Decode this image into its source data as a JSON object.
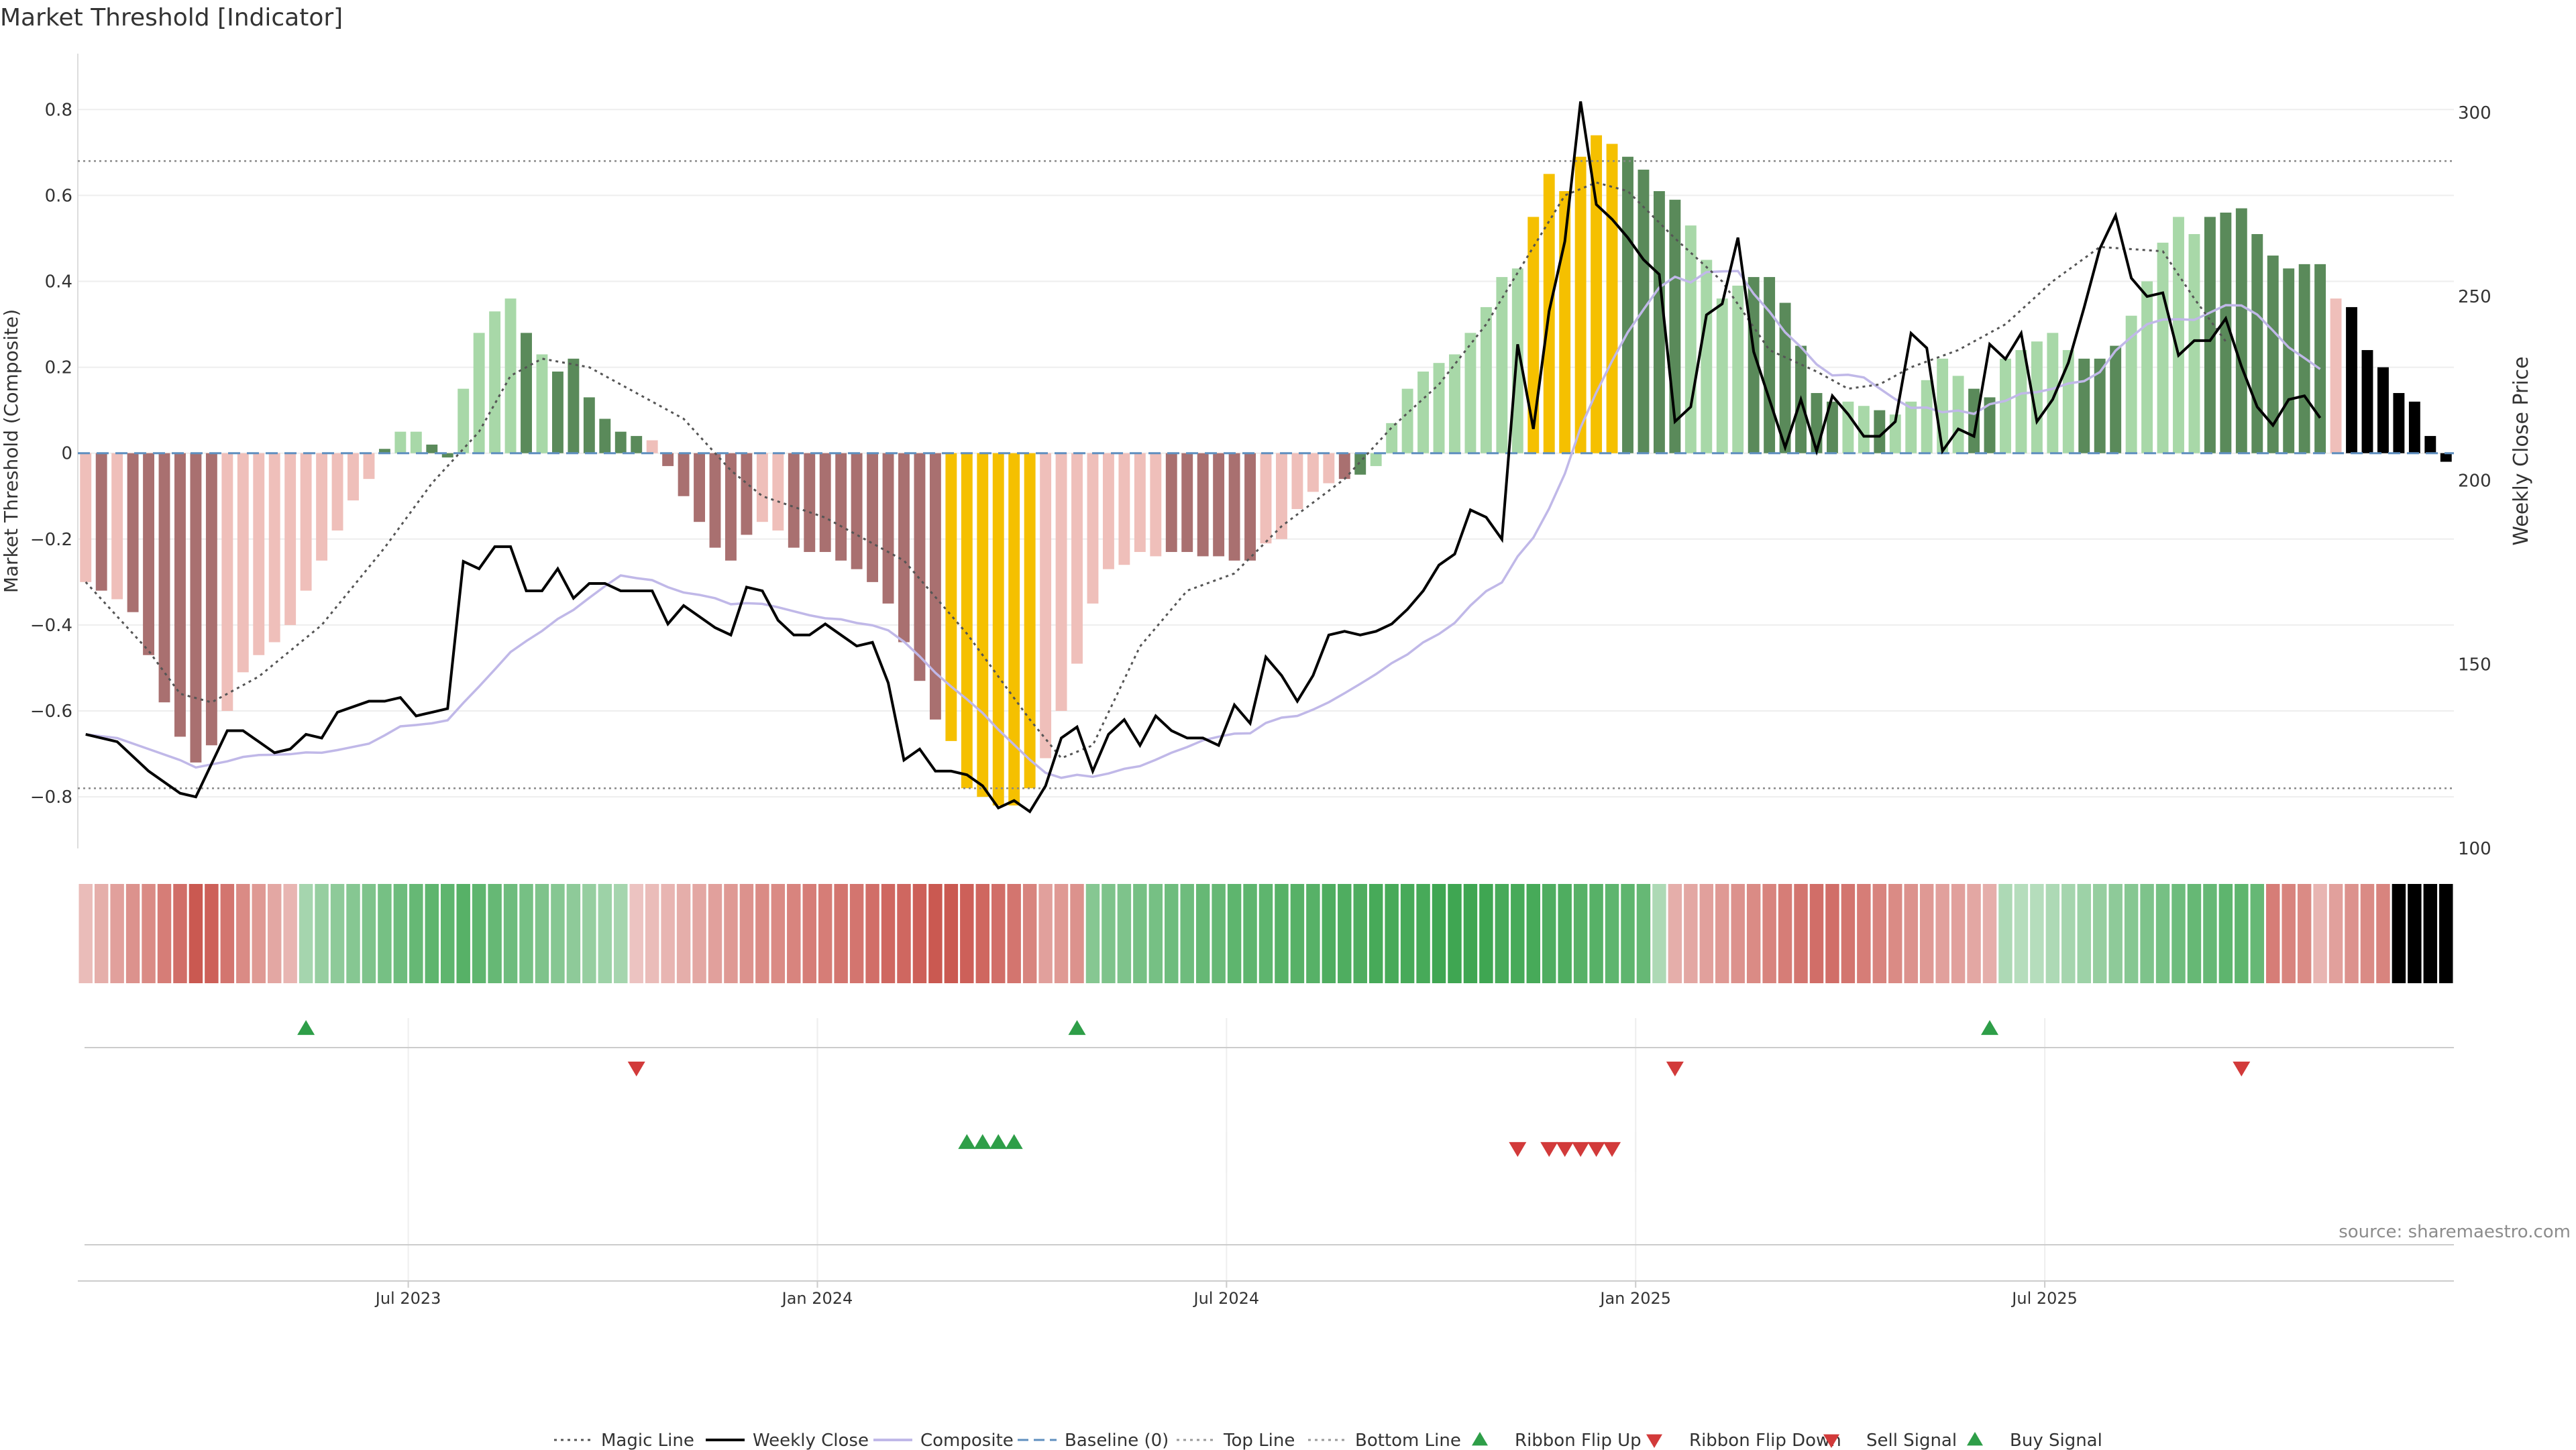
{
  "title": "Market Threshold [Indicator]",
  "source": "source: sharemaestro.com",
  "chart_data": {
    "type": "bar",
    "y_left": {
      "label": "Market Threshold (Composite)",
      "ticks": [
        0.8,
        0.6,
        0.4,
        0.2,
        0,
        -0.2,
        -0.4,
        -0.6,
        -0.8
      ],
      "tick_labels": [
        "0.8",
        "0.6",
        "0.4",
        "0.2",
        "0",
        "−0.2",
        "−0.4",
        "−0.6",
        "−0.8"
      ],
      "range": [
        -0.92,
        0.93
      ]
    },
    "y_right": {
      "label": "Weekly Close Price",
      "ticks": [
        300,
        250,
        200,
        150,
        100
      ],
      "range": [
        100,
        316
      ]
    },
    "x_ticks": [
      {
        "label": "Jul 2023",
        "week": 49.5
      },
      {
        "label": "Jan 2024",
        "week": 75.5
      },
      {
        "label": "Jul 2024",
        "week": 101.5
      },
      {
        "label": "Jan 2025",
        "week": 127.5
      },
      {
        "label": "Jul 2025",
        "week": 153.5
      }
    ],
    "start_week": 29,
    "top_line": 0.68,
    "bottom_line": -0.78,
    "composite": [
      -0.3,
      -0.32,
      -0.34,
      -0.37,
      -0.47,
      -0.58,
      -0.66,
      -0.72,
      -0.68,
      -0.6,
      -0.51,
      -0.47,
      -0.44,
      -0.4,
      -0.32,
      -0.25,
      -0.18,
      -0.11,
      -0.06,
      0.01,
      0.05,
      0.05,
      0.02,
      -0.01,
      0.15,
      0.28,
      0.33,
      0.36,
      0.28,
      0.23,
      0.19,
      0.22,
      0.13,
      0.08,
      0.05,
      0.04,
      0.03,
      -0.03,
      -0.1,
      -0.16,
      -0.22,
      -0.25,
      -0.19,
      -0.16,
      -0.18,
      -0.22,
      -0.23,
      -0.23,
      -0.25,
      -0.27,
      -0.3,
      -0.35,
      -0.44,
      -0.53,
      -0.62,
      -0.67,
      -0.78,
      -0.8,
      -0.82,
      -0.82,
      -0.78,
      -0.71,
      -0.6,
      -0.49,
      -0.35,
      -0.27,
      -0.26,
      -0.23,
      -0.24,
      -0.23,
      -0.23,
      -0.24,
      -0.24,
      -0.25,
      -0.25,
      -0.21,
      -0.2,
      -0.13,
      -0.09,
      -0.07,
      -0.06,
      -0.05,
      -0.03,
      0.07,
      0.15,
      0.19,
      0.21,
      0.23,
      0.28,
      0.34,
      0.41,
      0.43,
      0.55,
      0.65,
      0.61,
      0.69,
      0.74,
      0.72,
      0.69,
      0.66,
      0.61,
      0.59,
      0.53,
      0.45,
      0.36,
      0.39,
      0.41,
      0.41,
      0.35,
      0.25,
      0.14,
      0.12,
      0.12,
      0.11,
      0.1,
      0.09,
      0.12,
      0.17,
      0.22,
      0.18,
      0.15,
      0.13,
      0.22,
      0.24,
      0.26,
      0.28,
      0.24,
      0.22,
      0.22,
      0.25,
      0.32,
      0.4,
      0.49,
      0.55,
      0.51,
      0.55,
      0.56,
      0.57,
      0.51,
      0.46,
      0.43,
      0.44,
      0.44,
      0.36,
      0.34,
      0.24,
      0.2,
      0.14,
      0.12,
      0.04,
      -0.02
    ],
    "bar_states": "NDNDDDDDDNNNNNNNNNNPQQPPQQQQPQPPPPPPNDDDDDDNNDDDDDDDDDDYYYYYYNNNNNNNNDDDDDDNNNNNDPQQQQQQQQQQYYYYYYPPPPQQQQPPPPPPQQPQQQQQPPQQQQQPPPQQQQQPPPPPPPPN",
    "magic_line": [
      [
        29,
        -0.3
      ],
      [
        33,
        -0.46
      ],
      [
        35,
        -0.56
      ],
      [
        37,
        -0.58
      ],
      [
        40,
        -0.52
      ],
      [
        44,
        -0.4
      ],
      [
        48,
        -0.22
      ],
      [
        51,
        -0.07
      ],
      [
        54,
        0.05
      ],
      [
        56,
        0.18
      ],
      [
        58,
        0.22
      ],
      [
        61,
        0.2
      ],
      [
        64,
        0.14
      ],
      [
        67,
        0.08
      ],
      [
        70,
        -0.04
      ],
      [
        72,
        -0.1
      ],
      [
        76,
        -0.15
      ],
      [
        81,
        -0.25
      ],
      [
        85,
        -0.42
      ],
      [
        89,
        -0.62
      ],
      [
        91,
        -0.71
      ],
      [
        93,
        -0.68
      ],
      [
        96,
        -0.45
      ],
      [
        99,
        -0.32
      ],
      [
        102,
        -0.28
      ],
      [
        105,
        -0.17
      ],
      [
        109,
        -0.06
      ],
      [
        112,
        0.06
      ],
      [
        115,
        0.16
      ],
      [
        118,
        0.3
      ],
      [
        121,
        0.48
      ],
      [
        123,
        0.6
      ],
      [
        125,
        0.63
      ],
      [
        127,
        0.61
      ],
      [
        130,
        0.5
      ],
      [
        133,
        0.4
      ],
      [
        136,
        0.24
      ],
      [
        139,
        0.19
      ],
      [
        141,
        0.15
      ],
      [
        143,
        0.16
      ],
      [
        145,
        0.2
      ],
      [
        148,
        0.24
      ],
      [
        151,
        0.3
      ],
      [
        154,
        0.4
      ],
      [
        157,
        0.48
      ],
      [
        161,
        0.47
      ],
      [
        163,
        0.36
      ],
      [
        165,
        0.26
      ]
    ],
    "weekly_close": [
      [
        29,
        131
      ],
      [
        31,
        129
      ],
      [
        33,
        121
      ],
      [
        35,
        115
      ],
      [
        36,
        114
      ],
      [
        38,
        132
      ],
      [
        39,
        132
      ],
      [
        40,
        129
      ],
      [
        41,
        126
      ],
      [
        42,
        127
      ],
      [
        43,
        131
      ],
      [
        44,
        130
      ],
      [
        45,
        137
      ],
      [
        47,
        140
      ],
      [
        48,
        140
      ],
      [
        49,
        141
      ],
      [
        50,
        136
      ],
      [
        51,
        137
      ],
      [
        52,
        138
      ],
      [
        53,
        178
      ],
      [
        54,
        176
      ],
      [
        55,
        182
      ],
      [
        56,
        182
      ],
      [
        57,
        170
      ],
      [
        58,
        170
      ],
      [
        59,
        176
      ],
      [
        60,
        168
      ],
      [
        61,
        172
      ],
      [
        62,
        172
      ],
      [
        63,
        170
      ],
      [
        64,
        170
      ],
      [
        65,
        170
      ],
      [
        66,
        161
      ],
      [
        67,
        166
      ],
      [
        68,
        163
      ],
      [
        69,
        160
      ],
      [
        70,
        158
      ],
      [
        71,
        171
      ],
      [
        72,
        170
      ],
      [
        73,
        162
      ],
      [
        74,
        158
      ],
      [
        75,
        158
      ],
      [
        76,
        161
      ],
      [
        77,
        158
      ],
      [
        78,
        155
      ],
      [
        79,
        156
      ],
      [
        80,
        145
      ],
      [
        81,
        124
      ],
      [
        82,
        127
      ],
      [
        83,
        121
      ],
      [
        84,
        121
      ],
      [
        85,
        120
      ],
      [
        86,
        117
      ],
      [
        87,
        111
      ],
      [
        88,
        113
      ],
      [
        89,
        110
      ],
      [
        90,
        117
      ],
      [
        91,
        130
      ],
      [
        92,
        133
      ],
      [
        93,
        121
      ],
      [
        94,
        131
      ],
      [
        95,
        135
      ],
      [
        96,
        128
      ],
      [
        97,
        136
      ],
      [
        98,
        132
      ],
      [
        99,
        130
      ],
      [
        100,
        130
      ],
      [
        101,
        128
      ],
      [
        102,
        139
      ],
      [
        103,
        134
      ],
      [
        104,
        152
      ],
      [
        105,
        147
      ],
      [
        106,
        140
      ],
      [
        107,
        147
      ],
      [
        108,
        158
      ],
      [
        109,
        159
      ],
      [
        110,
        158
      ],
      [
        111,
        159
      ],
      [
        112,
        161
      ],
      [
        113,
        165
      ],
      [
        114,
        170
      ],
      [
        115,
        177
      ],
      [
        116,
        180
      ],
      [
        117,
        192
      ],
      [
        118,
        190
      ],
      [
        119,
        184
      ],
      [
        120,
        237
      ],
      [
        121,
        214
      ],
      [
        122,
        246
      ],
      [
        123,
        265
      ],
      [
        124,
        303
      ],
      [
        125,
        275
      ],
      [
        126,
        271
      ],
      [
        127,
        266
      ],
      [
        128,
        260
      ],
      [
        129,
        256
      ],
      [
        130,
        216
      ],
      [
        131,
        220
      ],
      [
        132,
        245
      ],
      [
        133,
        248
      ],
      [
        134,
        266
      ],
      [
        135,
        235
      ],
      [
        136,
        222
      ],
      [
        137,
        209
      ],
      [
        138,
        222
      ],
      [
        139,
        208
      ],
      [
        140,
        223
      ],
      [
        141,
        218
      ],
      [
        142,
        212
      ],
      [
        143,
        212
      ],
      [
        144,
        216
      ],
      [
        145,
        240
      ],
      [
        146,
        236
      ],
      [
        147,
        208
      ],
      [
        148,
        214
      ],
      [
        149,
        212
      ],
      [
        150,
        237
      ],
      [
        151,
        233
      ],
      [
        152,
        240
      ],
      [
        153,
        216
      ],
      [
        154,
        222
      ],
      [
        155,
        232
      ],
      [
        156,
        247
      ],
      [
        157,
        263
      ],
      [
        158,
        272
      ],
      [
        159,
        255
      ],
      [
        160,
        250
      ],
      [
        161,
        251
      ],
      [
        162,
        234
      ],
      [
        163,
        238
      ],
      [
        164,
        238
      ],
      [
        165,
        244
      ],
      [
        166,
        231
      ],
      [
        167,
        220
      ],
      [
        168,
        215
      ],
      [
        169,
        222
      ],
      [
        170,
        223
      ],
      [
        171,
        217
      ]
    ],
    "ribbon": "RRRRRRRRRRRRRRGGGGGGGGGGGGGGGGGGGGGRRRRRRRRRRRRRRRRRRRRRRRRRRRRRGGGGGGGGGGGGGGGGGGGGGGGGGGGGGGGGGGGGGRRRRRRRRRRRRRRRRRRRRRGGGGGGGGGGGGGGGGGRRRRR",
    "ribbon_intensity": [
      0.25,
      0.35,
      0.45,
      0.55,
      0.6,
      0.7,
      0.8,
      0.95,
      0.9,
      0.75,
      0.6,
      0.5,
      0.4,
      0.3,
      0.35,
      0.45,
      0.5,
      0.55,
      0.6,
      0.65,
      0.7,
      0.75,
      0.8,
      0.8,
      0.85,
      0.8,
      0.75,
      0.7,
      0.65,
      0.6,
      0.55,
      0.5,
      0.45,
      0.4,
      0.35,
      0.2,
      0.25,
      0.3,
      0.35,
      0.4,
      0.45,
      0.5,
      0.55,
      0.6,
      0.6,
      0.65,
      0.7,
      0.7,
      0.75,
      0.75,
      0.8,
      0.85,
      0.85,
      0.9,
      0.95,
      0.95,
      0.9,
      0.85,
      0.8,
      0.75,
      0.65,
      0.45,
      0.5,
      0.55,
      0.55,
      0.6,
      0.6,
      0.65,
      0.65,
      0.7,
      0.7,
      0.75,
      0.75,
      0.8,
      0.8,
      0.8,
      0.85,
      0.85,
      0.85,
      0.9,
      0.9,
      0.9,
      0.95,
      0.95,
      0.95,
      0.95,
      1.0,
      1.0,
      1.0,
      1.0,
      0.95,
      0.95,
      0.95,
      0.9,
      0.9,
      0.85,
      0.85,
      0.8,
      0.8,
      0.75,
      0.3,
      0.35,
      0.4,
      0.45,
      0.5,
      0.55,
      0.6,
      0.65,
      0.7,
      0.75,
      0.8,
      0.8,
      0.75,
      0.7,
      0.65,
      0.6,
      0.55,
      0.5,
      0.45,
      0.45,
      0.4,
      0.35,
      0.3,
      0.25,
      0.25,
      0.3,
      0.35,
      0.4,
      0.45,
      0.5,
      0.55,
      0.6,
      0.65,
      0.7,
      0.75,
      0.75,
      0.8,
      0.8,
      0.75,
      0.7,
      0.65,
      0.6,
      0.3,
      0.45,
      0.55,
      0.6,
      0.65
    ],
    "ribbon_flip_up": [
      43,
      92,
      150
    ],
    "ribbon_flip_down": [
      64,
      130,
      166
    ],
    "buy_signals": [
      85,
      86,
      87,
      88
    ],
    "sell_signals": [
      120,
      122,
      123,
      124,
      125,
      126
    ]
  },
  "legend": [
    {
      "label": "Magic Line",
      "marker": "dotted-line"
    },
    {
      "label": "Weekly Close",
      "marker": "line"
    },
    {
      "label": "Composite",
      "marker": "line"
    },
    {
      "label": "Baseline (0)",
      "marker": "dashed-line"
    },
    {
      "label": "Top Line",
      "marker": "dotted-line"
    },
    {
      "label": "Bottom Line",
      "marker": "dotted-line"
    },
    {
      "label": "Ribbon Flip Up",
      "marker": "triangle-up"
    },
    {
      "label": "Ribbon Flip Down",
      "marker": "triangle-down"
    },
    {
      "label": "Sell Signal",
      "marker": "triangle-down"
    },
    {
      "label": "Buy Signal",
      "marker": "triangle-up"
    }
  ],
  "colors": {
    "pos_strong": "#5a8a5a",
    "pos_light": "#a8d8a8",
    "neg_strong": "#a97070",
    "neg_light": "#efbfba",
    "extreme": "#f5c000",
    "composite_line": "#c0b8e8",
    "magic_line": "#555555",
    "close_line": "#000000",
    "baseline": "#5f8fbf",
    "buy": "#2e9e48",
    "sell": "#d23a3a",
    "flip_up": "#2e9e48",
    "flip_down": "#d23a3a",
    "ribbon_red": "#c8524a",
    "ribbon_green": "#3fa652"
  }
}
